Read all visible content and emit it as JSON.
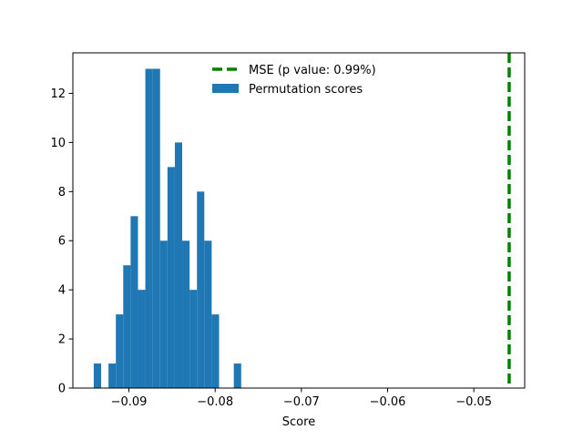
{
  "chart_data": {
    "type": "bar",
    "title": "",
    "xlabel": "Score",
    "ylabel": "",
    "xlim": [
      -0.0965,
      -0.0441
    ],
    "ylim": [
      0,
      13.65
    ],
    "xticks": [
      -0.09,
      -0.08,
      -0.07,
      -0.06,
      -0.05
    ],
    "xtick_labels": [
      "−0.09",
      "−0.08",
      "−0.07",
      "−0.06",
      "−0.05"
    ],
    "yticks": [
      0,
      2,
      4,
      6,
      8,
      10,
      12
    ],
    "ytick_labels": [
      "0",
      "2",
      "4",
      "6",
      "8",
      "10",
      "12"
    ],
    "grid": false,
    "legend_position": "top-center",
    "bin_width": 0.000855,
    "bin_start": -0.09408,
    "bin_counts": [
      1,
      0,
      1,
      3,
      5,
      7,
      4,
      13,
      13,
      6,
      9,
      10,
      6,
      4,
      8,
      6,
      3,
      0,
      0,
      1
    ],
    "series": [
      {
        "name": "Permutation scores",
        "kind": "histogram",
        "color": "#1f77b4"
      },
      {
        "name": "MSE (p value: 0.99%)",
        "kind": "vline",
        "x": -0.0459,
        "color": "#008000",
        "linestyle": "dashed"
      }
    ]
  }
}
